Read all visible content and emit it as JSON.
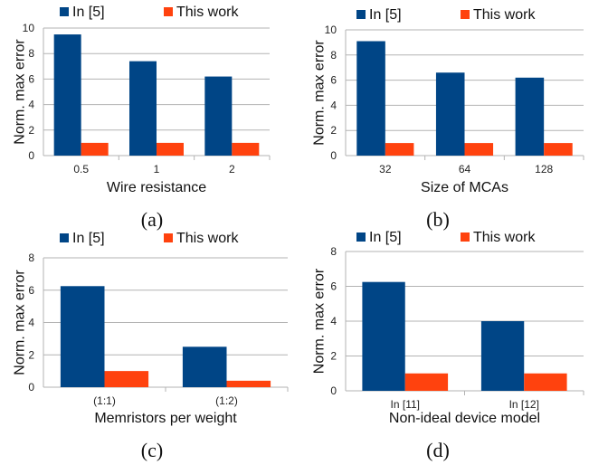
{
  "colors": {
    "series_a": "#004586",
    "series_b": "#ff420e",
    "grid": "#b3b3b3",
    "axis": "#b3b3b3"
  },
  "chart_data": [
    {
      "type": "bar",
      "caption": "(a)",
      "xlabel": "Wire resistance",
      "ylabel": "Norm. max error",
      "categories": [
        "0.5",
        "1",
        "2"
      ],
      "ylim": [
        0,
        10
      ],
      "yticks": [
        0,
        2,
        4,
        6,
        8,
        10
      ],
      "grid": true,
      "legend": "top",
      "series": [
        {
          "name": "In [5]",
          "values": [
            9.5,
            7.4,
            6.2
          ]
        },
        {
          "name": "This work",
          "values": [
            1,
            1,
            1
          ]
        }
      ]
    },
    {
      "type": "bar",
      "caption": "(b)",
      "xlabel": "Size of MCAs",
      "ylabel": "Norm. max error",
      "categories": [
        "32",
        "64",
        "128"
      ],
      "ylim": [
        0,
        10
      ],
      "yticks": [
        0,
        2,
        4,
        6,
        8,
        10
      ],
      "grid": true,
      "legend": "top",
      "series": [
        {
          "name": "In [5]",
          "values": [
            9.1,
            6.6,
            6.2
          ]
        },
        {
          "name": "This work",
          "values": [
            1,
            1,
            1
          ]
        }
      ]
    },
    {
      "type": "bar",
      "caption": "(c)",
      "xlabel": "Memristors per weight",
      "ylabel": "Norm. max error",
      "categories": [
        "(1:1)",
        "(1:2)"
      ],
      "ylim": [
        0,
        8
      ],
      "yticks": [
        0,
        2,
        4,
        6,
        8
      ],
      "grid": true,
      "legend": "top",
      "series": [
        {
          "name": "In [5]",
          "values": [
            6.25,
            2.5
          ]
        },
        {
          "name": "This work",
          "values": [
            1,
            0.4
          ]
        }
      ]
    },
    {
      "type": "bar",
      "caption": "(d)",
      "xlabel": "Non-ideal device model",
      "ylabel": "Norm. max error",
      "categories": [
        "In [11]",
        "In [12]"
      ],
      "ylim": [
        0,
        8
      ],
      "yticks": [
        0,
        2,
        4,
        6,
        8
      ],
      "grid": true,
      "legend": "top",
      "series": [
        {
          "name": "In [5]",
          "values": [
            6.25,
            4.0
          ]
        },
        {
          "name": "This work",
          "values": [
            1,
            1
          ]
        }
      ]
    }
  ]
}
